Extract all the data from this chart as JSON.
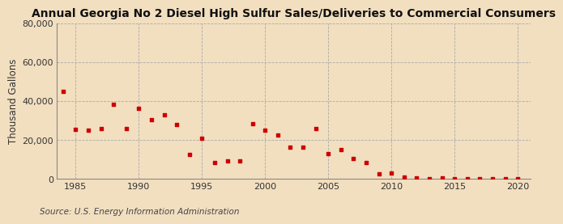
{
  "title": "Annual Georgia No 2 Diesel High Sulfur Sales/Deliveries to Commercial Consumers",
  "ylabel": "Thousand Gallons",
  "source": "Source: U.S. Energy Information Administration",
  "background_color": "#f2dfc0",
  "plot_background_color": "#f2dfc0",
  "marker_color": "#cc0000",
  "years": [
    1984,
    1985,
    1986,
    1987,
    1988,
    1989,
    1990,
    1991,
    1992,
    1993,
    1994,
    1995,
    1996,
    1997,
    1998,
    1999,
    2000,
    2001,
    2002,
    2003,
    2004,
    2005,
    2006,
    2007,
    2008,
    2009,
    2010,
    2011,
    2012,
    2013,
    2014,
    2015,
    2016,
    2017,
    2018,
    2019,
    2020
  ],
  "values": [
    45000,
    25500,
    25000,
    26000,
    38500,
    26000,
    36500,
    30500,
    33000,
    28000,
    12500,
    21000,
    8500,
    9500,
    9500,
    28500,
    25000,
    22500,
    16500,
    16500,
    26000,
    13000,
    15000,
    10500,
    8500,
    2500,
    3000,
    1000,
    500,
    300,
    500,
    200,
    200,
    200,
    200,
    100,
    100
  ],
  "xlim": [
    1983.5,
    2021
  ],
  "ylim": [
    0,
    80000
  ],
  "yticks": [
    0,
    20000,
    40000,
    60000,
    80000
  ],
  "xticks": [
    1985,
    1990,
    1995,
    2000,
    2005,
    2010,
    2015,
    2020
  ],
  "grid_color": "#aaaaaa",
  "title_fontsize": 10,
  "axis_fontsize": 8.5,
  "tick_fontsize": 8,
  "source_fontsize": 7.5
}
